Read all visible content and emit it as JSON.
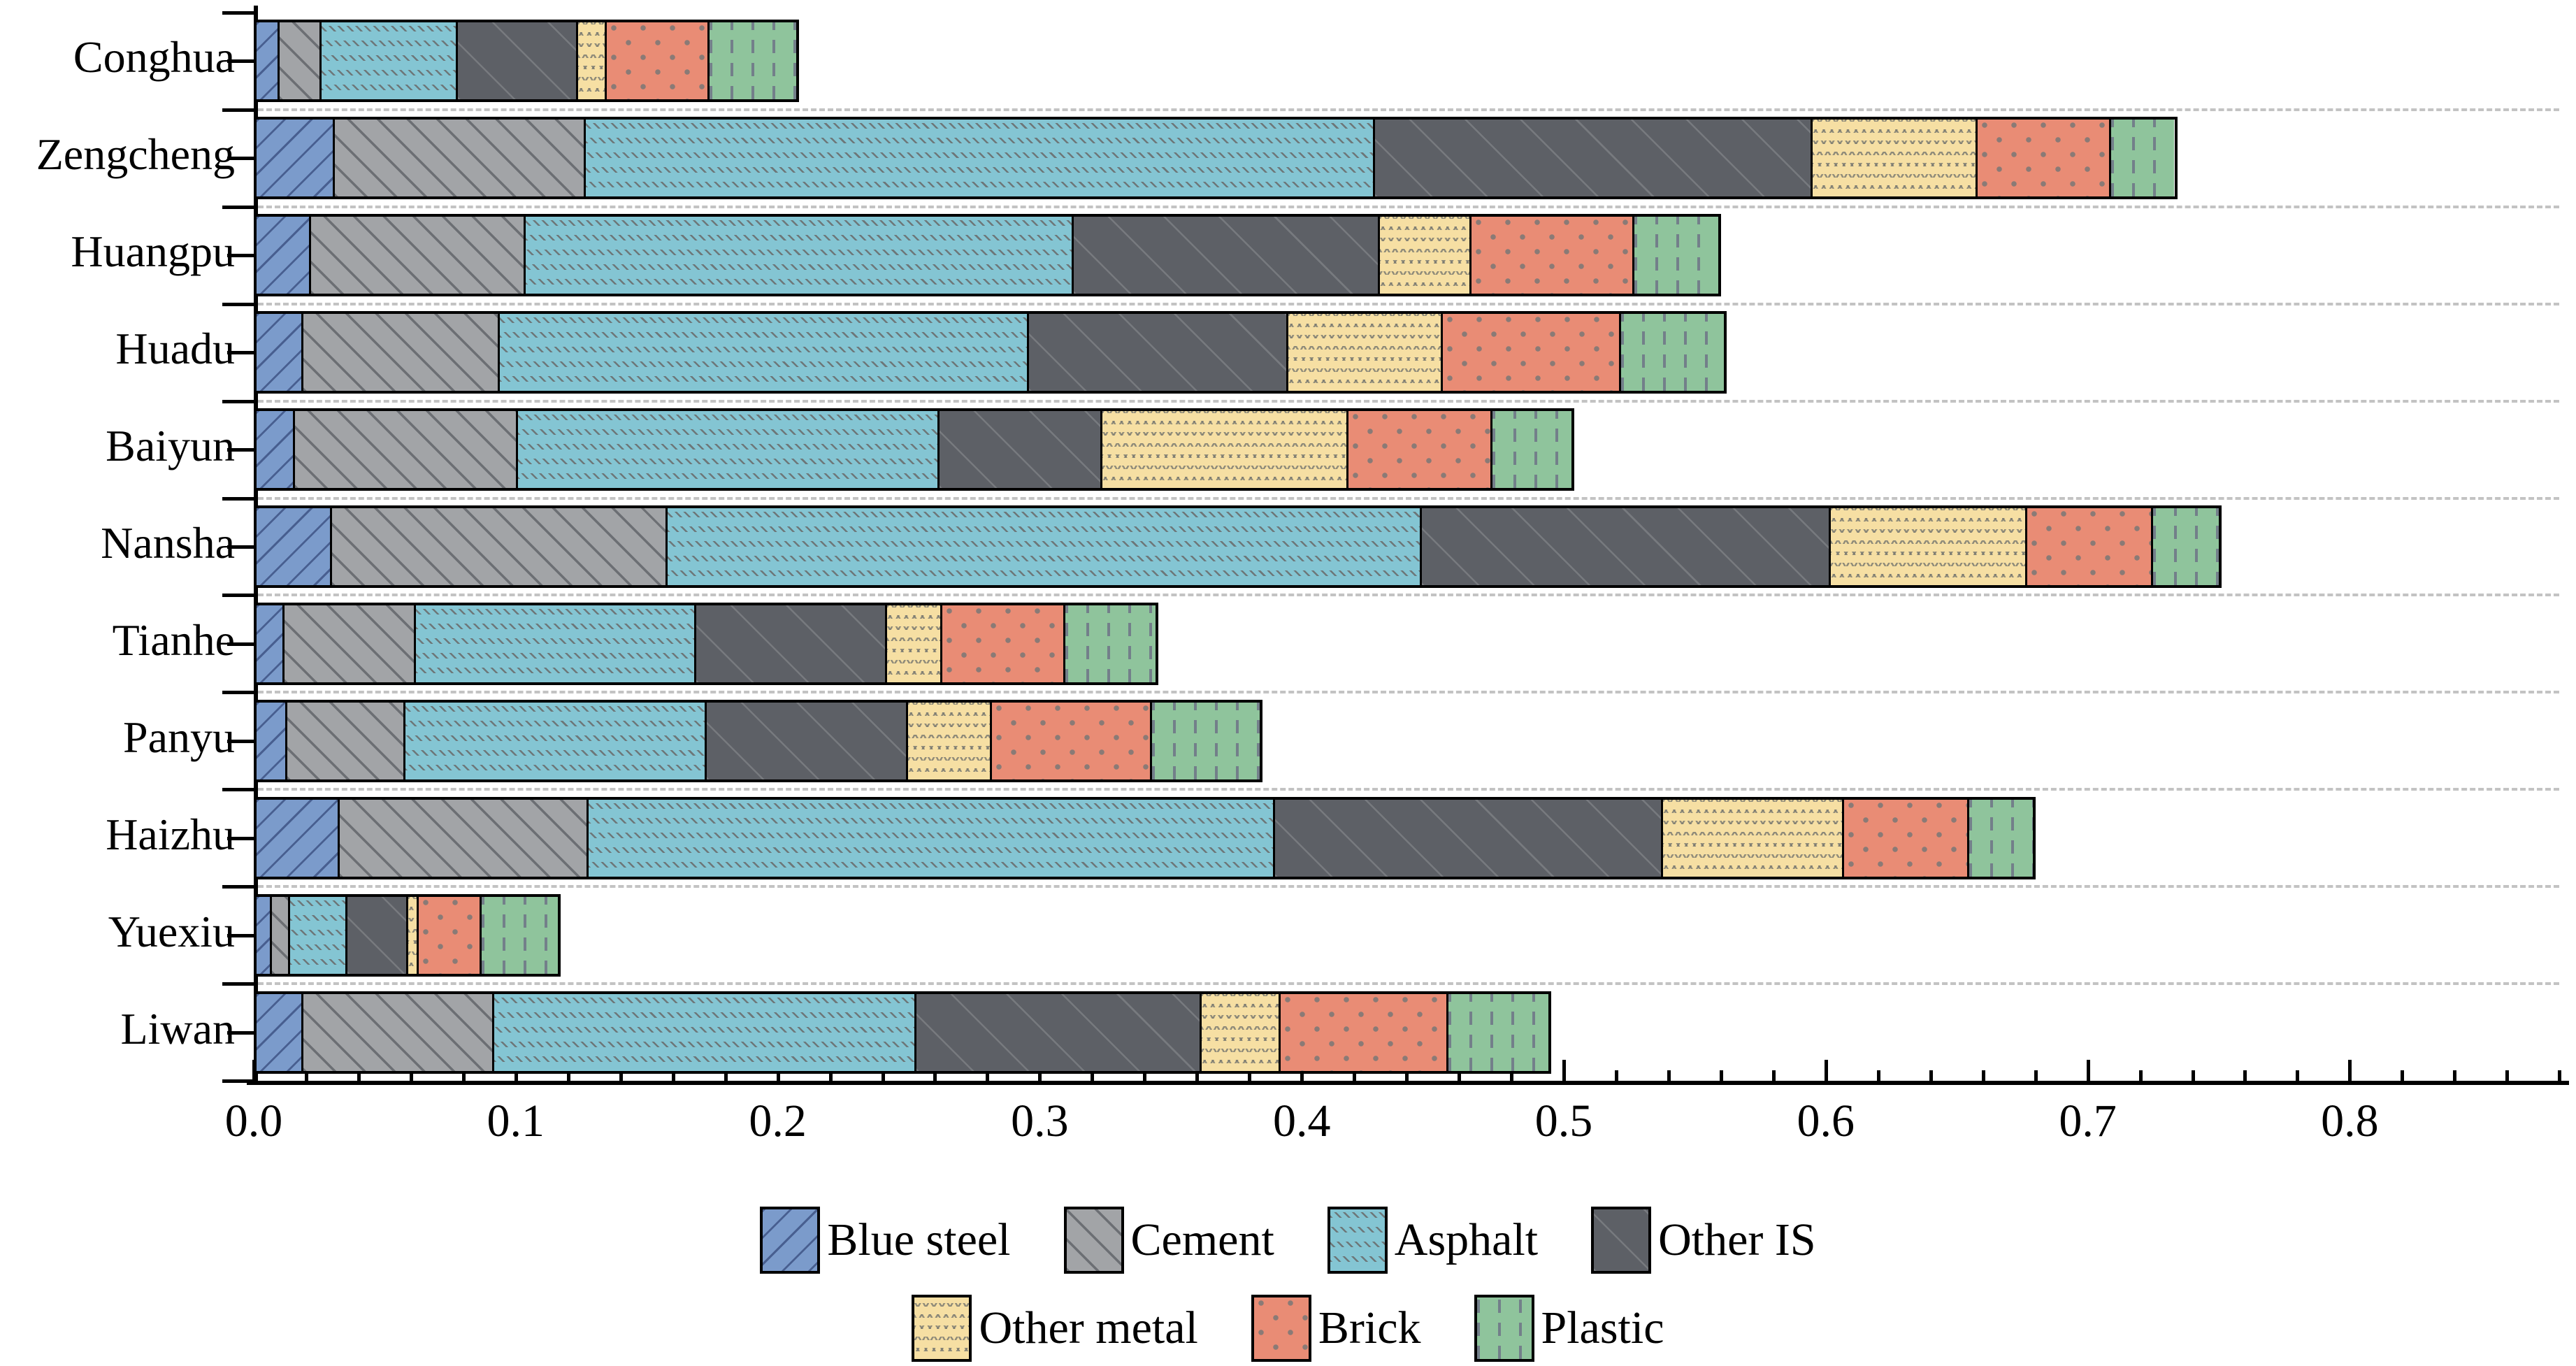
{
  "chart_data": {
    "type": "bar",
    "orientation": "horizontal",
    "stacked": true,
    "title": "",
    "xlabel": "",
    "ylabel": "",
    "categories": [
      "Conghua",
      "Zengcheng",
      "Huangpu",
      "Huadu",
      "Baiyun",
      "Nansha",
      "Tianhe",
      "Panyu",
      "Haizhu",
      "Yuexiu",
      "Liwan"
    ],
    "series": [
      {
        "name": "Blue steel",
        "color": "#7b9bcb",
        "hatch": "blue-steel",
        "values": [
          0.008,
          0.029,
          0.02,
          0.017,
          0.014,
          0.028,
          0.01,
          0.011,
          0.031,
          0.005,
          0.017
        ]
      },
      {
        "name": "Cement",
        "color": "#a2a4a7",
        "hatch": "cement",
        "values": [
          0.016,
          0.096,
          0.082,
          0.075,
          0.085,
          0.128,
          0.05,
          0.045,
          0.095,
          0.007,
          0.073
        ]
      },
      {
        "name": "Asphalt",
        "color": "#84c5d3",
        "hatch": "asphalt",
        "values": [
          0.052,
          0.301,
          0.209,
          0.202,
          0.161,
          0.288,
          0.107,
          0.115,
          0.262,
          0.022,
          0.161
        ]
      },
      {
        "name": "Other IS",
        "color": "#5d6066",
        "hatch": "other-is",
        "values": [
          0.046,
          0.167,
          0.117,
          0.099,
          0.062,
          0.156,
          0.073,
          0.077,
          0.148,
          0.023,
          0.109
        ]
      },
      {
        "name": "Other metal",
        "color": "#f6dfa3",
        "hatch": "other-metal",
        "values": [
          0.011,
          0.063,
          0.035,
          0.059,
          0.094,
          0.075,
          0.021,
          0.032,
          0.069,
          0.004,
          0.03
        ]
      },
      {
        "name": "Brick",
        "color": "#e98c75",
        "hatch": "brick",
        "values": [
          0.039,
          0.051,
          0.062,
          0.068,
          0.055,
          0.048,
          0.047,
          0.061,
          0.048,
          0.024,
          0.064
        ]
      },
      {
        "name": "Plastic",
        "color": "#8fc49c",
        "hatch": "plastic",
        "values": [
          0.034,
          0.025,
          0.033,
          0.04,
          0.031,
          0.026,
          0.035,
          0.042,
          0.025,
          0.03,
          0.039
        ]
      }
    ],
    "totals": [
      0.206,
      0.732,
      0.558,
      0.56,
      0.502,
      0.749,
      0.343,
      0.383,
      0.678,
      0.115,
      0.493
    ],
    "xlim": [
      0,
      0.88
    ],
    "x_major_ticks": [
      0.0,
      0.1,
      0.2,
      0.3,
      0.4,
      0.5,
      0.6,
      0.7,
      0.8
    ],
    "x_tick_labels": [
      "0.0",
      "0.1",
      "0.2",
      "0.3",
      "0.4",
      "0.5",
      "0.6",
      "0.7",
      "0.8"
    ],
    "x_minor_tick_step": 0.02,
    "grid": "dashed horizontal separators between category rows",
    "legend_position": "bottom, two centered rows",
    "legend_rows": [
      [
        0,
        1,
        2,
        3
      ],
      [
        4,
        5,
        6
      ]
    ]
  }
}
